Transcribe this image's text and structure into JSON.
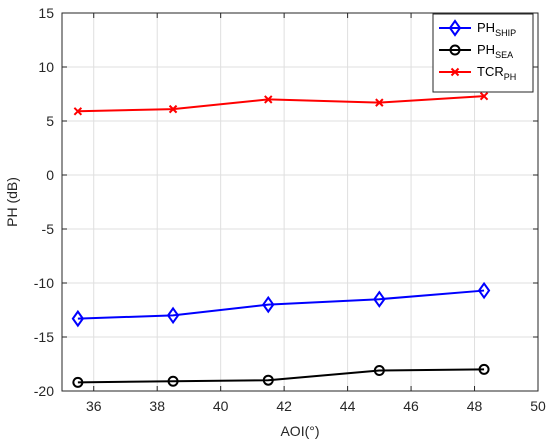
{
  "chart_data": {
    "type": "line",
    "xlabel": "AOI(°)",
    "ylabel": "PH (dB)",
    "xlim": [
      35,
      50
    ],
    "ylim": [
      -20,
      15
    ],
    "xticks": [
      36,
      38,
      40,
      42,
      44,
      46,
      48,
      50
    ],
    "yticks": [
      -20,
      -15,
      -10,
      -5,
      0,
      5,
      10,
      15
    ],
    "grid": true,
    "legend_position": "top-right",
    "x": [
      35.5,
      38.5,
      41.5,
      45.0,
      48.3
    ],
    "series": [
      {
        "name": "PH",
        "name_sub": "SHIP",
        "color": "#0000ff",
        "marker": "diamond",
        "values": [
          -13.3,
          -13.0,
          -12.0,
          -11.5,
          -10.7
        ]
      },
      {
        "name": "PH",
        "name_sub": "SEA",
        "color": "#000000",
        "marker": "circle",
        "values": [
          -19.2,
          -19.1,
          -19.0,
          -18.1,
          -18.0
        ]
      },
      {
        "name": "TCR",
        "name_sub": "PH",
        "color": "#ff0000",
        "marker": "x",
        "values": [
          5.9,
          6.1,
          7.0,
          6.7,
          7.3
        ]
      }
    ]
  }
}
